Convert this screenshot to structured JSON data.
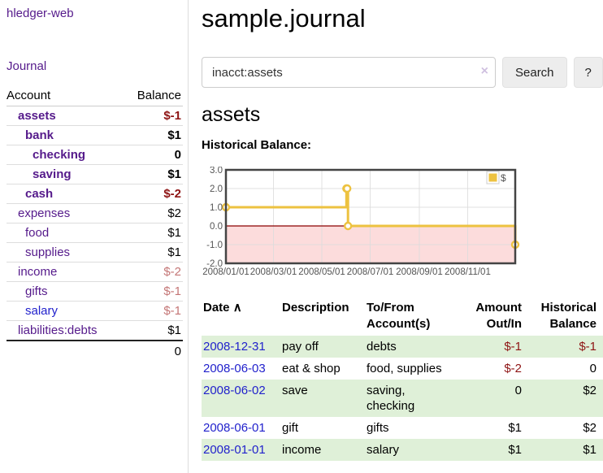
{
  "app": {
    "title": "hledger-web"
  },
  "sidebar": {
    "journal_link": "Journal",
    "accounts_table": {
      "headers": {
        "account": "Account",
        "balance": "Balance"
      },
      "rows": [
        {
          "name": "assets",
          "balance": "$-1"
        },
        {
          "name": "bank",
          "balance": "$1"
        },
        {
          "name": "checking",
          "balance": "0"
        },
        {
          "name": "saving",
          "balance": "$1"
        },
        {
          "name": "cash",
          "balance": "$-2"
        },
        {
          "name": "expenses",
          "balance": "$2"
        },
        {
          "name": "food",
          "balance": "$1"
        },
        {
          "name": "supplies",
          "balance": "$1"
        },
        {
          "name": "income",
          "balance": "$-2"
        },
        {
          "name": "gifts",
          "balance": "$-1"
        },
        {
          "name": "salary",
          "balance": "$-1"
        },
        {
          "name": "liabilities:debts",
          "balance": "$1"
        }
      ],
      "total": "0"
    }
  },
  "main": {
    "title": "sample.journal",
    "search": {
      "value": "inacct:assets",
      "clear_icon": "×",
      "search_button": "Search",
      "help_button": "?"
    },
    "account_heading": "assets",
    "chart_heading": "Historical Balance:"
  },
  "chart_data": {
    "type": "line",
    "title": "Historical Balance:",
    "step": true,
    "series": [
      {
        "name": "$",
        "color": "#edc240",
        "points": [
          [
            "2008-01-01",
            1
          ],
          [
            "2008-06-01",
            2
          ],
          [
            "2008-06-02",
            2
          ],
          [
            "2008-06-03",
            0
          ],
          [
            "2008-12-31",
            -1
          ]
        ]
      }
    ],
    "xrange": [
      "2008-01-01",
      "2008-12-31"
    ],
    "x_ticks": [
      "2008/01/01",
      "2008/03/01",
      "2008/05/01",
      "2008/07/01",
      "2008/09/01",
      "2008/11/01"
    ],
    "y_ticks": [
      "3.0",
      "2.0",
      "1.0",
      "0.0",
      "-1.0",
      "-2.0"
    ],
    "ylim": [
      -2,
      3
    ],
    "grid": true,
    "legend_position": "top-right",
    "legend": {
      "label": "$",
      "swatch_color": "#edc240"
    },
    "negative_region_color": "#fcdcdc",
    "zero_line_color": "#8b0000",
    "grid_color": "#dcdcdc",
    "border_color": "#444444",
    "tick_text_color": "#545454",
    "marker": {
      "fill": "#ffffff",
      "stroke": "#edc240"
    }
  },
  "register_table": {
    "headers": {
      "date": "Date",
      "sort_indicator": "∧",
      "description": "Description",
      "tofrom": "To/From Account(s)",
      "amount": "Amount Out/In",
      "balance": "Historical Balance"
    },
    "rows": [
      {
        "date": "2008-12-31",
        "description": "pay off",
        "accounts": "debts",
        "amount": "$-1",
        "balance": "$-1"
      },
      {
        "date": "2008-06-03",
        "description": "eat & shop",
        "accounts": "food, supplies",
        "amount": "$-2",
        "balance": "0"
      },
      {
        "date": "2008-06-02",
        "description": "save",
        "accounts": "saving, checking",
        "amount": "0",
        "balance": "$2"
      },
      {
        "date": "2008-06-01",
        "description": "gift",
        "accounts": "gifts",
        "amount": "$1",
        "balance": "$2"
      },
      {
        "date": "2008-01-01",
        "description": "income",
        "accounts": "salary",
        "amount": "$1",
        "balance": "$1"
      }
    ]
  },
  "colors": {
    "link_purple": "#551a8b",
    "link_blue": "#2222cc",
    "negative_strong": "#8e1414",
    "negative_soft": "#c47676",
    "row_stripe_green": "#dff0d8",
    "chart_gold": "#edc240"
  }
}
